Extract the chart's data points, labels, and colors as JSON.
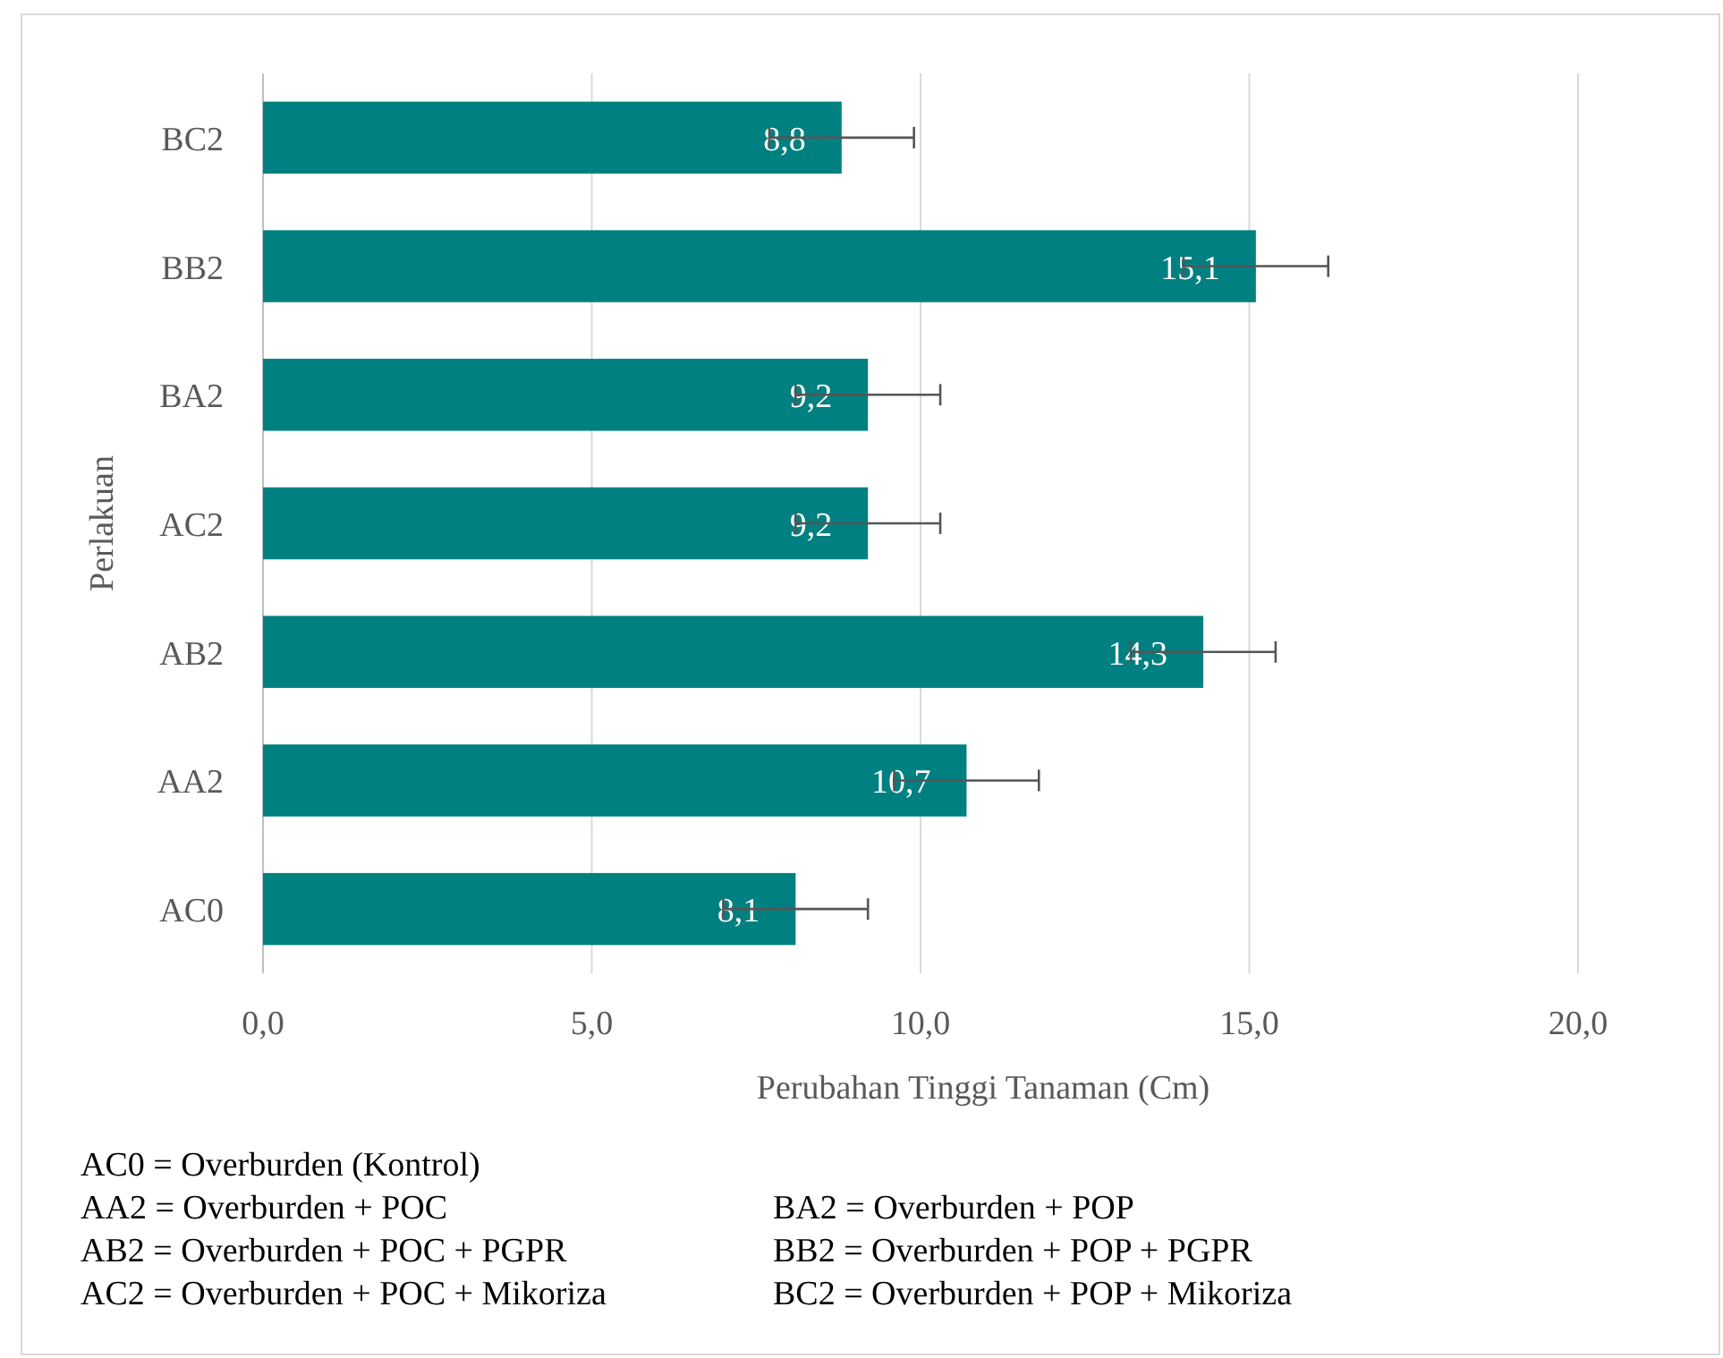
{
  "chart_data": {
    "type": "bar",
    "orientation": "horizontal",
    "categories": [
      "BC2",
      "BB2",
      "BA2",
      "AC2",
      "AB2",
      "AA2",
      "AC0"
    ],
    "values": [
      8.8,
      15.1,
      9.2,
      9.2,
      14.3,
      10.7,
      8.1
    ],
    "value_labels": [
      "8,8",
      "15,1",
      "9,2",
      "9,2",
      "14,3",
      "10,7",
      "8,1"
    ],
    "errors": [
      1.1,
      1.1,
      1.1,
      1.1,
      1.1,
      1.1,
      1.1
    ],
    "color": "#008080",
    "xlim": [
      0,
      20
    ],
    "xticks": [
      {
        "value": 0,
        "label": "0,0"
      },
      {
        "value": 5,
        "label": "5,0"
      },
      {
        "value": 10,
        "label": "10,0"
      },
      {
        "value": 15,
        "label": "15,0"
      },
      {
        "value": 20,
        "label": "20,0"
      }
    ],
    "grid": "x",
    "xlabel": "Perubahan Tinggi Tanaman  (Cm)",
    "ylabel": "Perlakuan",
    "annotations": [
      "AC0 = Overburden (Kontrol)",
      "AA2 = Overburden + POC",
      "BA2 = Overburden + POP",
      "AB2 = Overburden + POC + PGPR",
      "BB2 = Overburden + POP + PGPR",
      "AC2 = Overburden + POC + Mikoriza",
      "BC2 = Overburden + POP + Mikoriza"
    ]
  }
}
